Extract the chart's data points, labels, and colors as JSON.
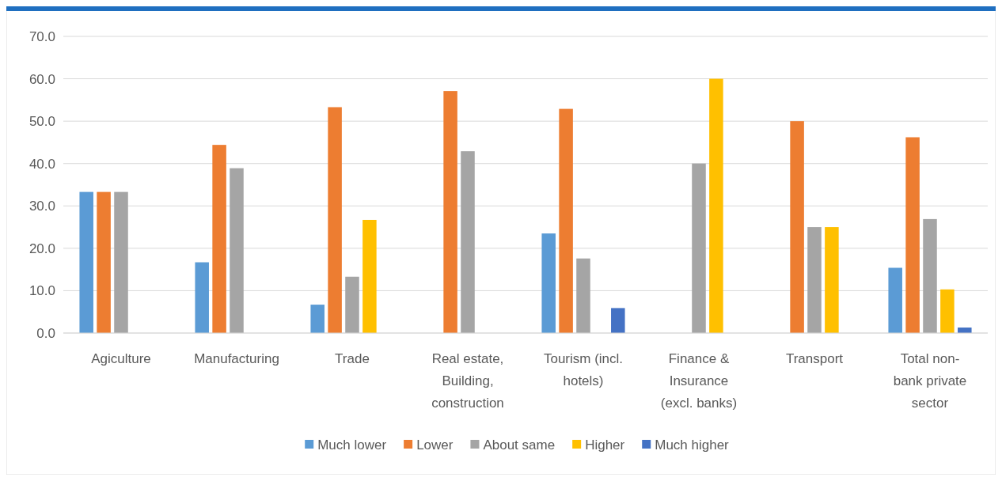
{
  "chart_data": {
    "type": "bar",
    "categories": [
      "Agiculture",
      "Manufacturing",
      "Trade",
      "Real estate, Building, construction",
      "Tourism (incl. hotels)",
      "Finance & Insurance (excl. banks)",
      "Transport",
      "Total non-bank private sector"
    ],
    "series": [
      {
        "name": "Much lower",
        "color": "#5b9bd5",
        "values": [
          33.3,
          16.7,
          6.7,
          0,
          23.5,
          0,
          0,
          15.4
        ]
      },
      {
        "name": "Lower",
        "color": "#ed7d31",
        "values": [
          33.3,
          44.4,
          53.3,
          57.1,
          52.9,
          0,
          50.0,
          46.2
        ]
      },
      {
        "name": "About same",
        "color": "#a5a5a5",
        "values": [
          33.3,
          38.9,
          13.3,
          42.9,
          17.6,
          40.0,
          25.0,
          26.9
        ]
      },
      {
        "name": "Higher",
        "color": "#ffc000",
        "values": [
          0,
          0,
          26.7,
          0,
          0,
          60.0,
          25.0,
          10.3
        ]
      },
      {
        "name": "Much higher",
        "color": "#4472c4",
        "values": [
          0,
          0,
          0,
          0,
          5.9,
          0,
          0,
          1.3
        ]
      }
    ],
    "ylim": [
      0,
      70
    ],
    "yticks": [
      {
        "value": 0,
        "label": "0.0"
      },
      {
        "value": 10,
        "label": "10.0"
      },
      {
        "value": 20,
        "label": "20.0"
      },
      {
        "value": 30,
        "label": "30.0"
      },
      {
        "value": 40,
        "label": "40.0"
      },
      {
        "value": 50,
        "label": "50.0"
      },
      {
        "value": 60,
        "label": "60.0"
      },
      {
        "value": 70,
        "label": "70.0"
      }
    ],
    "grid": "y",
    "legend": "bottom"
  }
}
